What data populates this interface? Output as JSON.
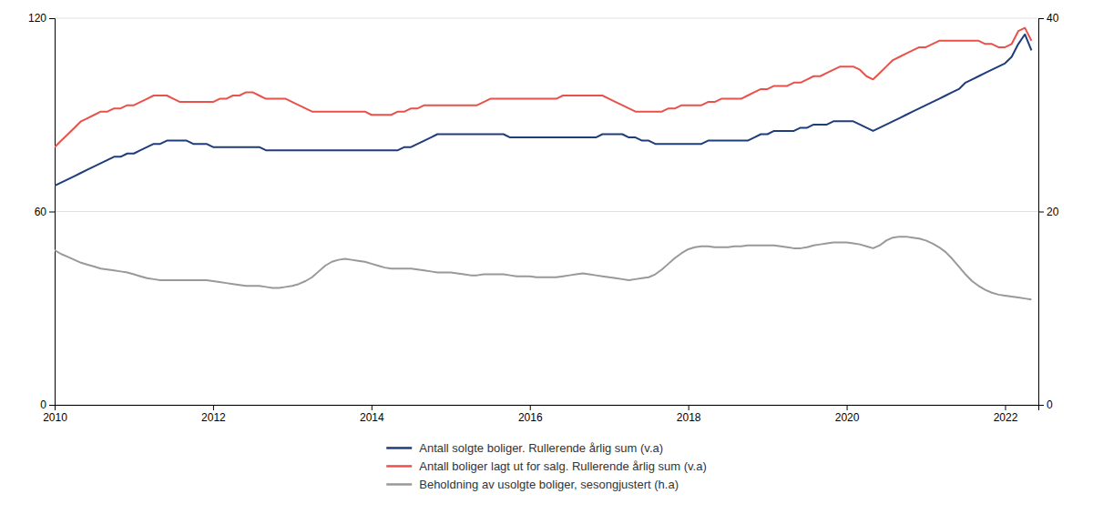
{
  "chart_data": {
    "type": "line",
    "x": [
      2010.0,
      2010.083,
      2010.167,
      2010.25,
      2010.333,
      2010.417,
      2010.5,
      2010.583,
      2010.667,
      2010.75,
      2010.833,
      2010.917,
      2011.0,
      2011.083,
      2011.167,
      2011.25,
      2011.333,
      2011.417,
      2011.5,
      2011.583,
      2011.667,
      2011.75,
      2011.833,
      2011.917,
      2012.0,
      2012.083,
      2012.167,
      2012.25,
      2012.333,
      2012.417,
      2012.5,
      2012.583,
      2012.667,
      2012.75,
      2012.833,
      2012.917,
      2013.0,
      2013.083,
      2013.167,
      2013.25,
      2013.333,
      2013.417,
      2013.5,
      2013.583,
      2013.667,
      2013.75,
      2013.833,
      2013.917,
      2014.0,
      2014.083,
      2014.167,
      2014.25,
      2014.333,
      2014.417,
      2014.5,
      2014.583,
      2014.667,
      2014.75,
      2014.833,
      2014.917,
      2015.0,
      2015.083,
      2015.167,
      2015.25,
      2015.333,
      2015.417,
      2015.5,
      2015.583,
      2015.667,
      2015.75,
      2015.833,
      2015.917,
      2016.0,
      2016.083,
      2016.167,
      2016.25,
      2016.333,
      2016.417,
      2016.5,
      2016.583,
      2016.667,
      2016.75,
      2016.833,
      2016.917,
      2017.0,
      2017.083,
      2017.167,
      2017.25,
      2017.333,
      2017.417,
      2017.5,
      2017.583,
      2017.667,
      2017.75,
      2017.833,
      2017.917,
      2018.0,
      2018.083,
      2018.167,
      2018.25,
      2018.333,
      2018.417,
      2018.5,
      2018.583,
      2018.667,
      2018.75,
      2018.833,
      2018.917,
      2019.0,
      2019.083,
      2019.167,
      2019.25,
      2019.333,
      2019.417,
      2019.5,
      2019.583,
      2019.667,
      2019.75,
      2019.833,
      2019.917,
      2020.0,
      2020.083,
      2020.167,
      2020.25,
      2020.333,
      2020.417,
      2020.5,
      2020.583,
      2020.667,
      2020.75,
      2020.833,
      2020.917,
      2021.0,
      2021.083,
      2021.167,
      2021.25,
      2021.333,
      2021.417,
      2021.5,
      2021.583,
      2021.667,
      2021.75,
      2021.833,
      2021.917,
      2022.0,
      2022.083,
      2022.167,
      2022.25,
      2022.333
    ],
    "series": [
      {
        "name": "Antall solgte boliger. Rullerende årlig sum (v.a)",
        "color": "#1f3d7a",
        "values": [
          68,
          69,
          70,
          71,
          72,
          73,
          74,
          75,
          76,
          77,
          77,
          78,
          78,
          79,
          80,
          81,
          81,
          82,
          82,
          82,
          82,
          81,
          81,
          81,
          80,
          80,
          80,
          80,
          80,
          80,
          80,
          80,
          79,
          79,
          79,
          79,
          79,
          79,
          79,
          79,
          79,
          79,
          79,
          79,
          79,
          79,
          79,
          79,
          79,
          79,
          79,
          79,
          79,
          80,
          80,
          81,
          82,
          83,
          84,
          84,
          84,
          84,
          84,
          84,
          84,
          84,
          84,
          84,
          84,
          83,
          83,
          83,
          83,
          83,
          83,
          83,
          83,
          83,
          83,
          83,
          83,
          83,
          83,
          84,
          84,
          84,
          84,
          83,
          83,
          82,
          82,
          81,
          81,
          81,
          81,
          81,
          81,
          81,
          81,
          82,
          82,
          82,
          82,
          82,
          82,
          82,
          83,
          84,
          84,
          85,
          85,
          85,
          85,
          86,
          86,
          87,
          87,
          87,
          88,
          88,
          88,
          88,
          87,
          86,
          85,
          86,
          87,
          88,
          89,
          90,
          91,
          92,
          93,
          94,
          95,
          96,
          97,
          98,
          100,
          101,
          102,
          103,
          104,
          105,
          106,
          108,
          112,
          115,
          110
        ]
      },
      {
        "name": "Antall boliger lagt ut for salg. Rullerende årlig sum (v.a)",
        "color": "#e8524a",
        "values": [
          80,
          82,
          84,
          86,
          88,
          89,
          90,
          91,
          91,
          92,
          92,
          93,
          93,
          94,
          95,
          96,
          96,
          96,
          95,
          94,
          94,
          94,
          94,
          94,
          94,
          95,
          95,
          96,
          96,
          97,
          97,
          96,
          95,
          95,
          95,
          95,
          94,
          93,
          92,
          91,
          91,
          91,
          91,
          91,
          91,
          91,
          91,
          91,
          90,
          90,
          90,
          90,
          91,
          91,
          92,
          92,
          93,
          93,
          93,
          93,
          93,
          93,
          93,
          93,
          93,
          94,
          95,
          95,
          95,
          95,
          95,
          95,
          95,
          95,
          95,
          95,
          95,
          96,
          96,
          96,
          96,
          96,
          96,
          96,
          95,
          94,
          93,
          92,
          91,
          91,
          91,
          91,
          91,
          92,
          92,
          93,
          93,
          93,
          93,
          94,
          94,
          95,
          95,
          95,
          95,
          96,
          97,
          98,
          98,
          99,
          99,
          99,
          100,
          100,
          101,
          102,
          102,
          103,
          104,
          105,
          105,
          105,
          104,
          102,
          101,
          103,
          105,
          107,
          108,
          109,
          110,
          111,
          111,
          112,
          113,
          113,
          113,
          113,
          113,
          113,
          113,
          112,
          112,
          111,
          111,
          112,
          116,
          117,
          113
        ]
      },
      {
        "name": "Beholdning av usolgte boliger, sesongjustert (h.a)",
        "color": "#999999",
        "axis": "y2",
        "values": [
          16.0,
          15.6,
          15.3,
          15.0,
          14.7,
          14.5,
          14.3,
          14.1,
          14.0,
          13.9,
          13.8,
          13.7,
          13.5,
          13.3,
          13.1,
          13.0,
          12.9,
          12.9,
          12.9,
          12.9,
          12.9,
          12.9,
          12.9,
          12.9,
          12.8,
          12.7,
          12.6,
          12.5,
          12.4,
          12.3,
          12.3,
          12.3,
          12.2,
          12.1,
          12.1,
          12.2,
          12.3,
          12.5,
          12.8,
          13.2,
          13.8,
          14.4,
          14.8,
          15.0,
          15.1,
          15.0,
          14.9,
          14.8,
          14.6,
          14.4,
          14.2,
          14.1,
          14.1,
          14.1,
          14.1,
          14.0,
          13.9,
          13.8,
          13.7,
          13.7,
          13.7,
          13.6,
          13.5,
          13.4,
          13.4,
          13.5,
          13.5,
          13.5,
          13.5,
          13.4,
          13.3,
          13.3,
          13.3,
          13.2,
          13.2,
          13.2,
          13.2,
          13.3,
          13.4,
          13.5,
          13.6,
          13.5,
          13.4,
          13.3,
          13.2,
          13.1,
          13.0,
          12.9,
          13.0,
          13.1,
          13.2,
          13.5,
          14.0,
          14.6,
          15.2,
          15.7,
          16.1,
          16.3,
          16.4,
          16.4,
          16.3,
          16.3,
          16.3,
          16.4,
          16.4,
          16.5,
          16.5,
          16.5,
          16.5,
          16.5,
          16.4,
          16.3,
          16.2,
          16.2,
          16.3,
          16.5,
          16.6,
          16.7,
          16.8,
          16.8,
          16.8,
          16.7,
          16.6,
          16.4,
          16.2,
          16.5,
          17.0,
          17.3,
          17.4,
          17.4,
          17.3,
          17.2,
          17.0,
          16.7,
          16.3,
          15.8,
          15.1,
          14.3,
          13.5,
          12.8,
          12.3,
          11.9,
          11.6,
          11.4,
          11.3,
          11.2,
          11.1,
          11.0,
          10.9
        ]
      }
    ],
    "xlim": [
      2010.0,
      2022.42
    ],
    "xticks": [
      2010,
      2012,
      2014,
      2016,
      2018,
      2020,
      2022
    ],
    "ylim": [
      0,
      120
    ],
    "yticks": [
      0,
      60,
      120
    ],
    "y2lim": [
      0,
      40
    ],
    "y2ticks": [
      0,
      20,
      40
    ],
    "grid": true,
    "legend": "bottom"
  }
}
